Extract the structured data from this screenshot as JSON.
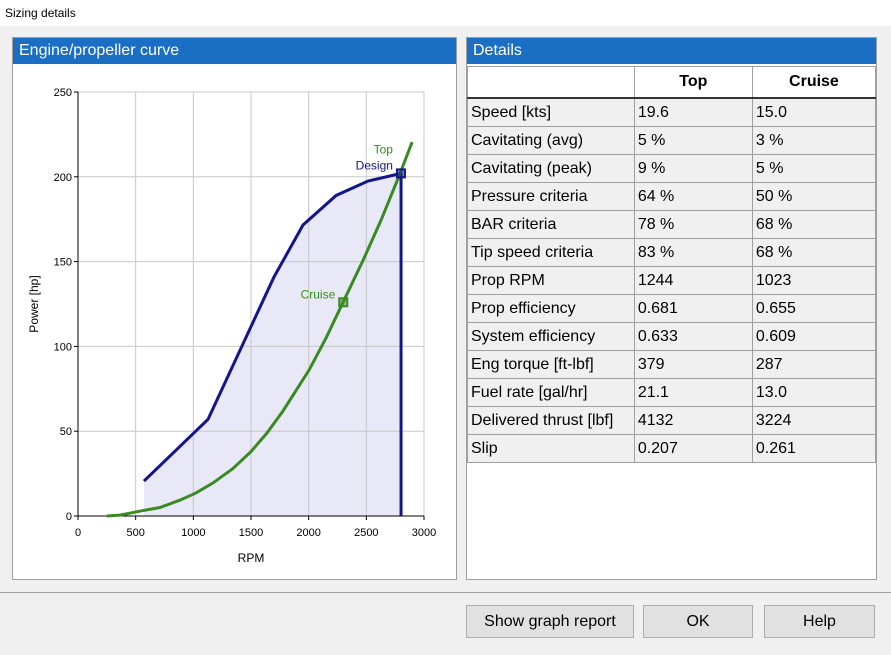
{
  "window_title": "Sizing details",
  "chart_data": {
    "type": "line",
    "title": "Engine/propeller curve",
    "xlabel": "RPM",
    "ylabel": "Power [hp]",
    "xlim": [
      0,
      3000
    ],
    "xticks": [
      0,
      500,
      1000,
      1500,
      2000,
      2500,
      3000
    ],
    "ylim": [
      0,
      250
    ],
    "yticks": [
      0,
      50,
      100,
      150,
      200,
      250
    ],
    "grid": true,
    "series": [
      {
        "color": "#14148c",
        "fill": "#e8e8f6",
        "x": [
          572,
          1127,
          1700,
          1951,
          2238,
          2515,
          2801,
          2801
        ],
        "values": [
          20.6,
          57,
          141,
          171.6,
          189,
          197.5,
          202,
          0
        ]
      },
      {
        "color": "#3a8a22",
        "x": [
          250,
          364,
          546,
          711,
          885,
          1023,
          1171,
          1344,
          1500,
          1639,
          1778,
          2003,
          2151,
          2298,
          2480,
          2628,
          2784,
          2897
        ],
        "values": [
          0,
          0.5,
          3,
          5,
          9.4,
          13.6,
          19.5,
          28,
          38,
          49,
          62,
          86,
          105,
          126,
          152,
          174.5,
          200.5,
          220.5
        ]
      }
    ],
    "markers": [
      {
        "x": 2300,
        "y": 126,
        "color": "#3a8a22",
        "labels": [
          {
            "text": "Cruise",
            "color": "#3a8a22"
          }
        ]
      },
      {
        "x": 2800,
        "y": 202,
        "color": "#14148c",
        "labels": [
          {
            "text": "Top",
            "color": "#3a8a22"
          },
          {
            "text": "Design",
            "color": "#14148c"
          }
        ]
      }
    ]
  },
  "details": {
    "title": "Details",
    "columns": [
      "Top",
      "Cruise"
    ],
    "rows": [
      [
        "Speed [kts]",
        "19.6",
        "15.0"
      ],
      [
        "Cavitating (avg)",
        "5 %",
        "3 %"
      ],
      [
        "Cavitating (peak)",
        "9 %",
        "5 %"
      ],
      [
        "Pressure criteria",
        "64 %",
        "50 %"
      ],
      [
        "BAR criteria",
        "78 %",
        "68 %"
      ],
      [
        "Tip speed criteria",
        "83 %",
        "68 %"
      ],
      [
        "Prop RPM",
        "1244",
        "1023"
      ],
      [
        "Prop efficiency",
        "0.681",
        "0.655"
      ],
      [
        "System efficiency",
        "0.633",
        "0.609"
      ],
      [
        "Eng torque [ft-lbf]",
        "379",
        "287"
      ],
      [
        "Fuel rate [gal/hr]",
        "21.1",
        "13.0"
      ],
      [
        "Delivered thrust [lbf]",
        "4132",
        "3224"
      ],
      [
        "Slip",
        "0.207",
        "0.261"
      ]
    ]
  },
  "buttons": [
    "Show graph report",
    "OK",
    "Help"
  ]
}
